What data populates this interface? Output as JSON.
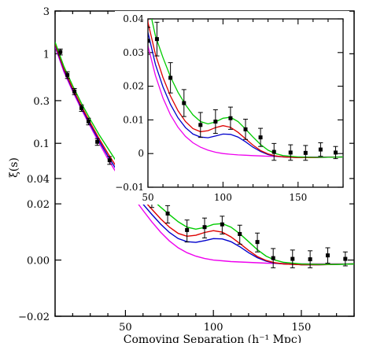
{
  "chart_data": [
    {
      "type": "line",
      "xlabel": "Comoving Separation (h⁻¹ Mpc)",
      "ylabel": "ξ(s)",
      "xlim": [
        10,
        180
      ],
      "ylim": [
        -0.02,
        3
      ],
      "y_scale": "asinh (linear near zero, logarithmic above)",
      "x_ticks": [
        "50",
        "100",
        "150"
      ],
      "y_ticks": [
        "3",
        "1",
        "0.3",
        "0.1",
        "0.04",
        "0.02",
        "0.00",
        "−0.02"
      ],
      "y_tick_values": [
        3,
        1,
        0.3,
        0.1,
        0.04,
        0.02,
        0,
        -0.02
      ],
      "series": [
        {
          "color": "#00cc00",
          "x": [
            10,
            15,
            20,
            25,
            30,
            35,
            40,
            45,
            50,
            55,
            60,
            65,
            70,
            75,
            80,
            85,
            90,
            95,
            100,
            105,
            110,
            115,
            120,
            125,
            130,
            135,
            140,
            150,
            160,
            170,
            180
          ],
          "y": [
            1.35,
            0.72,
            0.44,
            0.28,
            0.185,
            0.125,
            0.088,
            0.062,
            0.045,
            0.035,
            0.0285,
            0.0228,
            0.0182,
            0.0145,
            0.0115,
            0.0095,
            0.0088,
            0.0094,
            0.0105,
            0.0108,
            0.0095,
            0.0073,
            0.0049,
            0.0027,
            0.001,
            0.0,
            -0.0006,
            -0.001,
            -0.0011,
            -0.0011,
            -0.001
          ]
        },
        {
          "color": "#dd0000",
          "x": [
            10,
            15,
            20,
            25,
            30,
            35,
            40,
            45,
            50,
            55,
            60,
            65,
            70,
            75,
            80,
            85,
            90,
            95,
            100,
            105,
            110,
            115,
            120,
            125,
            130,
            135,
            140,
            150,
            160,
            170,
            180
          ],
          "y": [
            1.28,
            0.68,
            0.41,
            0.26,
            0.17,
            0.113,
            0.077,
            0.054,
            0.039,
            0.0295,
            0.0226,
            0.0171,
            0.0127,
            0.0095,
            0.0074,
            0.0065,
            0.0068,
            0.0077,
            0.0083,
            0.0078,
            0.0063,
            0.0044,
            0.0025,
            0.0009,
            -0.0001,
            -0.0007,
            -0.001,
            -0.0012,
            -0.0012,
            -0.0011,
            -0.001
          ]
        },
        {
          "color": "#0000cc",
          "x": [
            10,
            15,
            20,
            25,
            30,
            35,
            40,
            45,
            50,
            55,
            60,
            65,
            70,
            75,
            80,
            85,
            90,
            95,
            100,
            105,
            110,
            115,
            120,
            125,
            130,
            135,
            140,
            150,
            160,
            170,
            180
          ],
          "y": [
            1.24,
            0.66,
            0.395,
            0.25,
            0.162,
            0.107,
            0.072,
            0.05,
            0.036,
            0.0265,
            0.0198,
            0.0146,
            0.0106,
            0.0077,
            0.0058,
            0.0049,
            0.0047,
            0.0052,
            0.0058,
            0.0057,
            0.0049,
            0.0035,
            0.0019,
            0.0006,
            -0.0003,
            -0.0008,
            -0.001,
            -0.0012,
            -0.0012,
            -0.0011,
            -0.001
          ]
        },
        {
          "color": "#ee00ee",
          "x": [
            10,
            15,
            20,
            25,
            30,
            35,
            40,
            45,
            50,
            55,
            60,
            65,
            70,
            75,
            80,
            85,
            90,
            95,
            100,
            105,
            110,
            115,
            120,
            125,
            130,
            140,
            150,
            160,
            170,
            180
          ],
          "y": [
            1.2,
            0.63,
            0.38,
            0.24,
            0.155,
            0.101,
            0.067,
            0.046,
            0.032,
            0.0232,
            0.0165,
            0.0115,
            0.0078,
            0.0051,
            0.0032,
            0.0019,
            0.001,
            0.0004,
            0.0,
            -0.0002,
            -0.0004,
            -0.0005,
            -0.0006,
            -0.0007,
            -0.0008,
            -0.0009,
            -0.001,
            -0.001,
            -0.001,
            -0.001
          ]
        }
      ],
      "points": {
        "x": [
          13,
          17,
          21,
          25,
          29,
          34,
          41,
          50,
          56,
          65,
          74,
          85,
          95,
          105,
          115,
          125,
          134,
          145,
          155,
          165,
          175
        ],
        "y": [
          1.05,
          0.58,
          0.38,
          0.248,
          0.176,
          0.104,
          0.0645,
          0.0335,
          0.034,
          0.0225,
          0.015,
          0.0085,
          0.0095,
          0.0105,
          0.0072,
          0.0048,
          0.0005,
          0.0003,
          0.0002,
          0.0012,
          0.0003
        ],
        "err": [
          0.08,
          0.05,
          0.03,
          0.02,
          0.015,
          0.009,
          0.0065,
          0.004,
          0.005,
          0.0045,
          0.004,
          0.0037,
          0.0035,
          0.0033,
          0.003,
          0.0027,
          0.0025,
          0.0023,
          0.0022,
          0.002,
          0.0018
        ]
      }
    },
    {
      "type": "line",
      "inset": true,
      "xlim": [
        50,
        180
      ],
      "ylim": [
        -0.01,
        0.04
      ],
      "x_ticks": [
        "50",
        "100",
        "150"
      ],
      "y_ticks": [
        "0.04",
        "0.03",
        "0.02",
        "0.01",
        "0",
        "−0.01"
      ],
      "y_tick_values": [
        0.04,
        0.03,
        0.02,
        0.01,
        0,
        -0.01
      ],
      "series_note": "same four model curves and data points as the main panel, restricted to 50-180"
    }
  ]
}
